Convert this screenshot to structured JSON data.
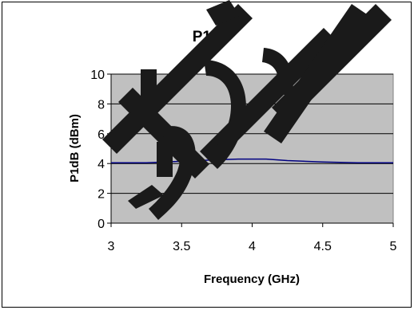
{
  "chart_data": {
    "type": "line",
    "title": "P1dB",
    "xlabel": "Frequency (GHz)",
    "ylabel": "P1dB (dBm)",
    "xlim": [
      3,
      5
    ],
    "ylim": [
      0,
      10
    ],
    "x_ticks": [
      "3",
      "3.5",
      "4",
      "4.5",
      "5"
    ],
    "y_ticks": [
      "0",
      "2",
      "4",
      "6",
      "8",
      "10"
    ],
    "grid": "horizontal",
    "legend": "none",
    "plot_background": "#c0c0c0",
    "series": [
      {
        "color": "#000080",
        "x": [
          3.0,
          3.25,
          3.5,
          3.75,
          3.9,
          4.0,
          4.1,
          4.25,
          4.5,
          4.75,
          5.0
        ],
        "y": [
          4.05,
          4.05,
          4.15,
          4.25,
          4.3,
          4.3,
          4.3,
          4.2,
          4.1,
          4.05,
          4.05
        ]
      }
    ]
  },
  "watermark": {
    "type": "graphic-strokes",
    "color": "#1a1a1a"
  }
}
